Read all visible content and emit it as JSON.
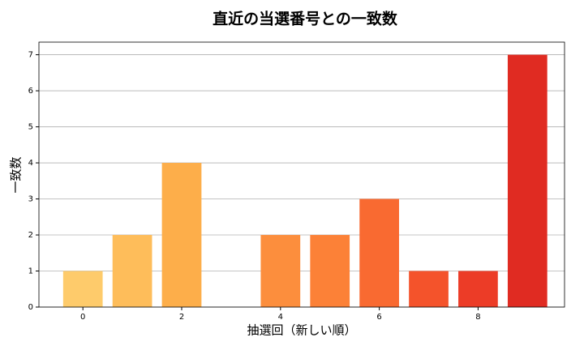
{
  "chart_data": {
    "type": "bar",
    "title": "直近の当選番号との一致数",
    "x_label": "抽選回（新しい順）",
    "y_label": "一致数",
    "x": [
      0,
      1,
      2,
      3,
      4,
      5,
      6,
      7,
      8,
      9
    ],
    "values": [
      1,
      2,
      4,
      0,
      2,
      2,
      3,
      1,
      1,
      7
    ],
    "colors": [
      "#fecb6b",
      "#febd5a",
      "#fdae4a",
      "#fd9f43",
      "#fc8e3d",
      "#fc8137",
      "#f96a31",
      "#f4532b",
      "#ec3c27",
      "#e02b22"
    ],
    "bar_width": 0.8,
    "xlim": [
      -0.89,
      9.75
    ],
    "xticks": [
      0,
      2,
      4,
      6,
      8
    ],
    "ylim": [
      0,
      7.35
    ],
    "yticks": [
      0,
      1,
      2,
      3,
      4,
      5,
      6,
      7
    ],
    "grid": true
  }
}
